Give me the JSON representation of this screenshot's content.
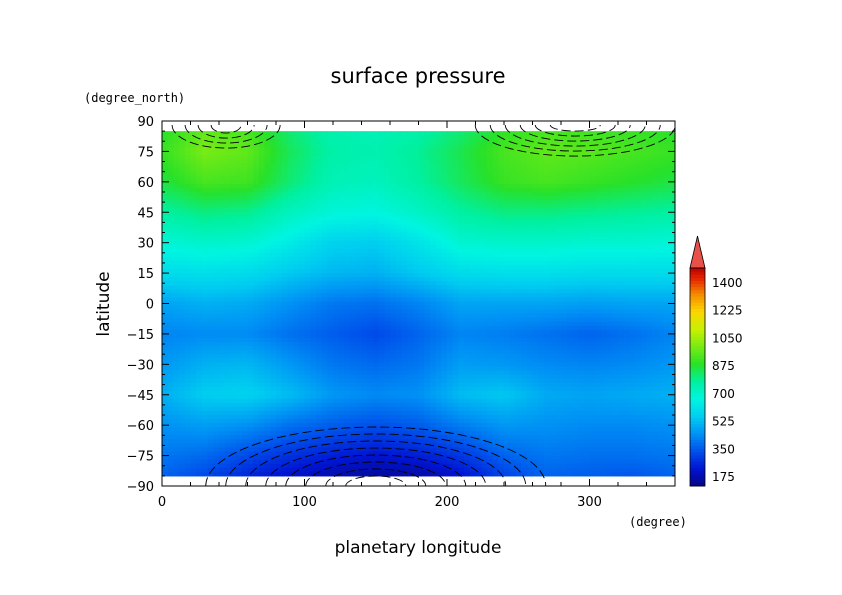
{
  "chart_data": {
    "type": "heatmap",
    "title": "surface pressure",
    "xlabel": "planetary longitude",
    "xunit": "(degree)",
    "ylabel": "latitude",
    "yunit": "(degree_north)",
    "xlim": [
      0,
      360
    ],
    "ylim": [
      -90,
      90
    ],
    "xticks": [
      0,
      100,
      200,
      300
    ],
    "yticks": [
      -90,
      -75,
      -60,
      -45,
      -30,
      -15,
      0,
      15,
      30,
      45,
      60,
      75,
      90
    ],
    "ytick_labels": [
      "−90",
      "−75",
      "−60",
      "−45",
      "−30",
      "−15",
      "0",
      "15",
      "30",
      "45",
      "60",
      "75",
      "90"
    ],
    "lat_extent": [
      -85,
      85
    ],
    "colorbar": {
      "min": 175,
      "max": 1400,
      "ticks": [
        175,
        350,
        525,
        700,
        875,
        1050,
        1225,
        1400
      ],
      "extend": "max"
    },
    "grid": "longitude x latitude (approx., read from colors)",
    "lon": [
      0,
      30,
      60,
      90,
      120,
      150,
      180,
      210,
      240,
      270,
      300,
      330,
      360
    ],
    "lat": [
      85,
      75,
      60,
      45,
      30,
      15,
      0,
      -15,
      -30,
      -45,
      -60,
      -75,
      -85
    ],
    "values": [
      [
        860,
        930,
        900,
        800,
        740,
        730,
        750,
        800,
        870,
        900,
        890,
        880,
        860
      ],
      [
        880,
        960,
        930,
        820,
        750,
        740,
        770,
        830,
        900,
        930,
        920,
        900,
        880
      ],
      [
        840,
        900,
        890,
        800,
        730,
        720,
        760,
        820,
        880,
        900,
        880,
        860,
        840
      ],
      [
        760,
        790,
        780,
        720,
        680,
        670,
        710,
        760,
        790,
        790,
        780,
        770,
        760
      ],
      [
        680,
        700,
        690,
        640,
        580,
        570,
        620,
        690,
        700,
        700,
        690,
        690,
        680
      ],
      [
        600,
        610,
        600,
        560,
        530,
        520,
        560,
        600,
        610,
        610,
        600,
        600,
        600
      ],
      [
        500,
        520,
        510,
        470,
        430,
        420,
        450,
        500,
        500,
        500,
        490,
        500,
        500
      ],
      [
        450,
        460,
        460,
        420,
        390,
        360,
        400,
        450,
        440,
        420,
        400,
        420,
        450
      ],
      [
        480,
        520,
        530,
        480,
        430,
        410,
        430,
        490,
        480,
        460,
        450,
        460,
        480
      ],
      [
        520,
        570,
        580,
        540,
        480,
        460,
        470,
        540,
        560,
        510,
        500,
        510,
        520
      ],
      [
        470,
        490,
        470,
        420,
        390,
        370,
        390,
        440,
        480,
        470,
        460,
        460,
        470
      ],
      [
        430,
        410,
        360,
        320,
        290,
        270,
        290,
        330,
        400,
        430,
        420,
        420,
        430
      ],
      [
        400,
        360,
        300,
        260,
        230,
        210,
        220,
        270,
        350,
        400,
        390,
        380,
        400
      ]
    ]
  }
}
